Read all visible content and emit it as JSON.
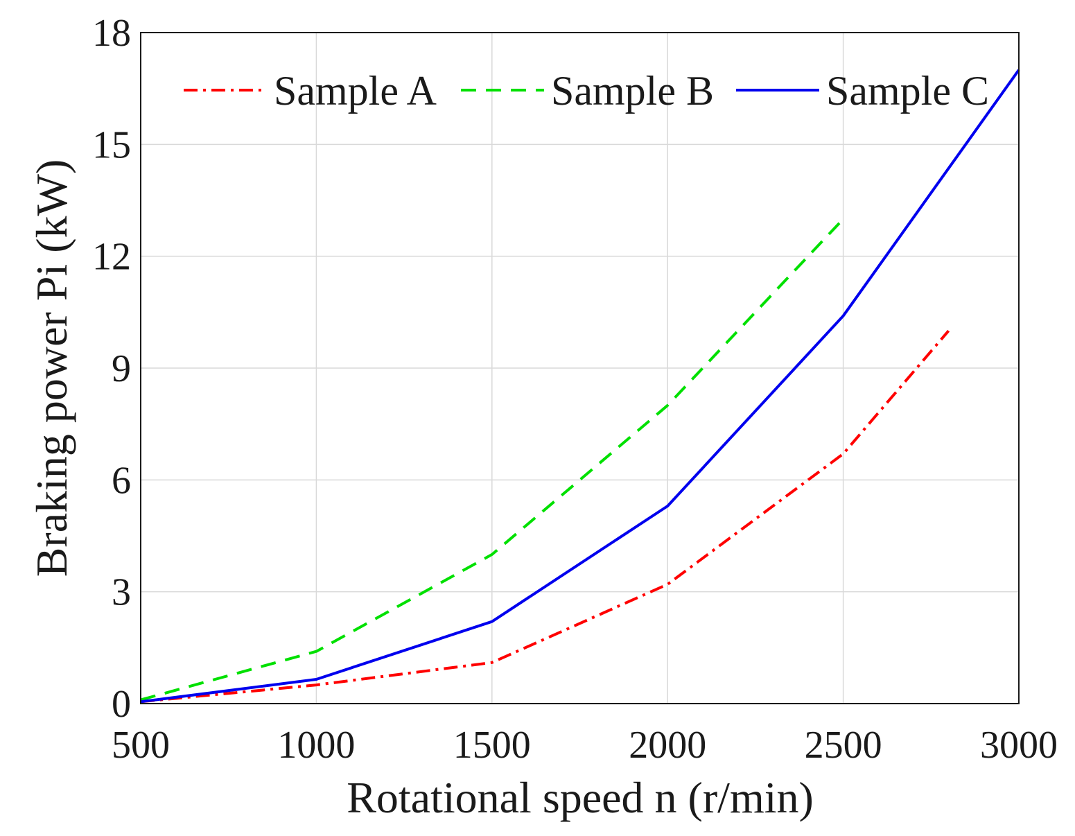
{
  "chart_data": {
    "type": "line",
    "title": "",
    "xlabel": "Rotational speed n (r/min)",
    "ylabel": "Braking power Pi (kW)",
    "xlim": [
      500,
      3000
    ],
    "ylim": [
      0,
      18
    ],
    "xticks": [
      500,
      1000,
      1500,
      2000,
      2500,
      3000
    ],
    "yticks": [
      0,
      3,
      6,
      9,
      12,
      15,
      18
    ],
    "grid": true,
    "legend_position": "top",
    "series": [
      {
        "name": "Sample A",
        "color": "#ff0000",
        "style": "dash-dot",
        "x": [
          500,
          1000,
          1500,
          2000,
          2500,
          2800
        ],
        "y": [
          0.05,
          0.5,
          1.1,
          3.2,
          6.7,
          10.0
        ]
      },
      {
        "name": "Sample B",
        "color": "#00e000",
        "style": "dashed",
        "x": [
          500,
          1000,
          1500,
          2000,
          2500
        ],
        "y": [
          0.1,
          1.4,
          4.0,
          8.0,
          13.0
        ]
      },
      {
        "name": "Sample C",
        "color": "#0000ee",
        "style": "solid",
        "x": [
          500,
          1000,
          1500,
          2000,
          2500,
          3000
        ],
        "y": [
          0.05,
          0.65,
          2.2,
          5.3,
          10.4,
          17.0
        ]
      }
    ]
  }
}
